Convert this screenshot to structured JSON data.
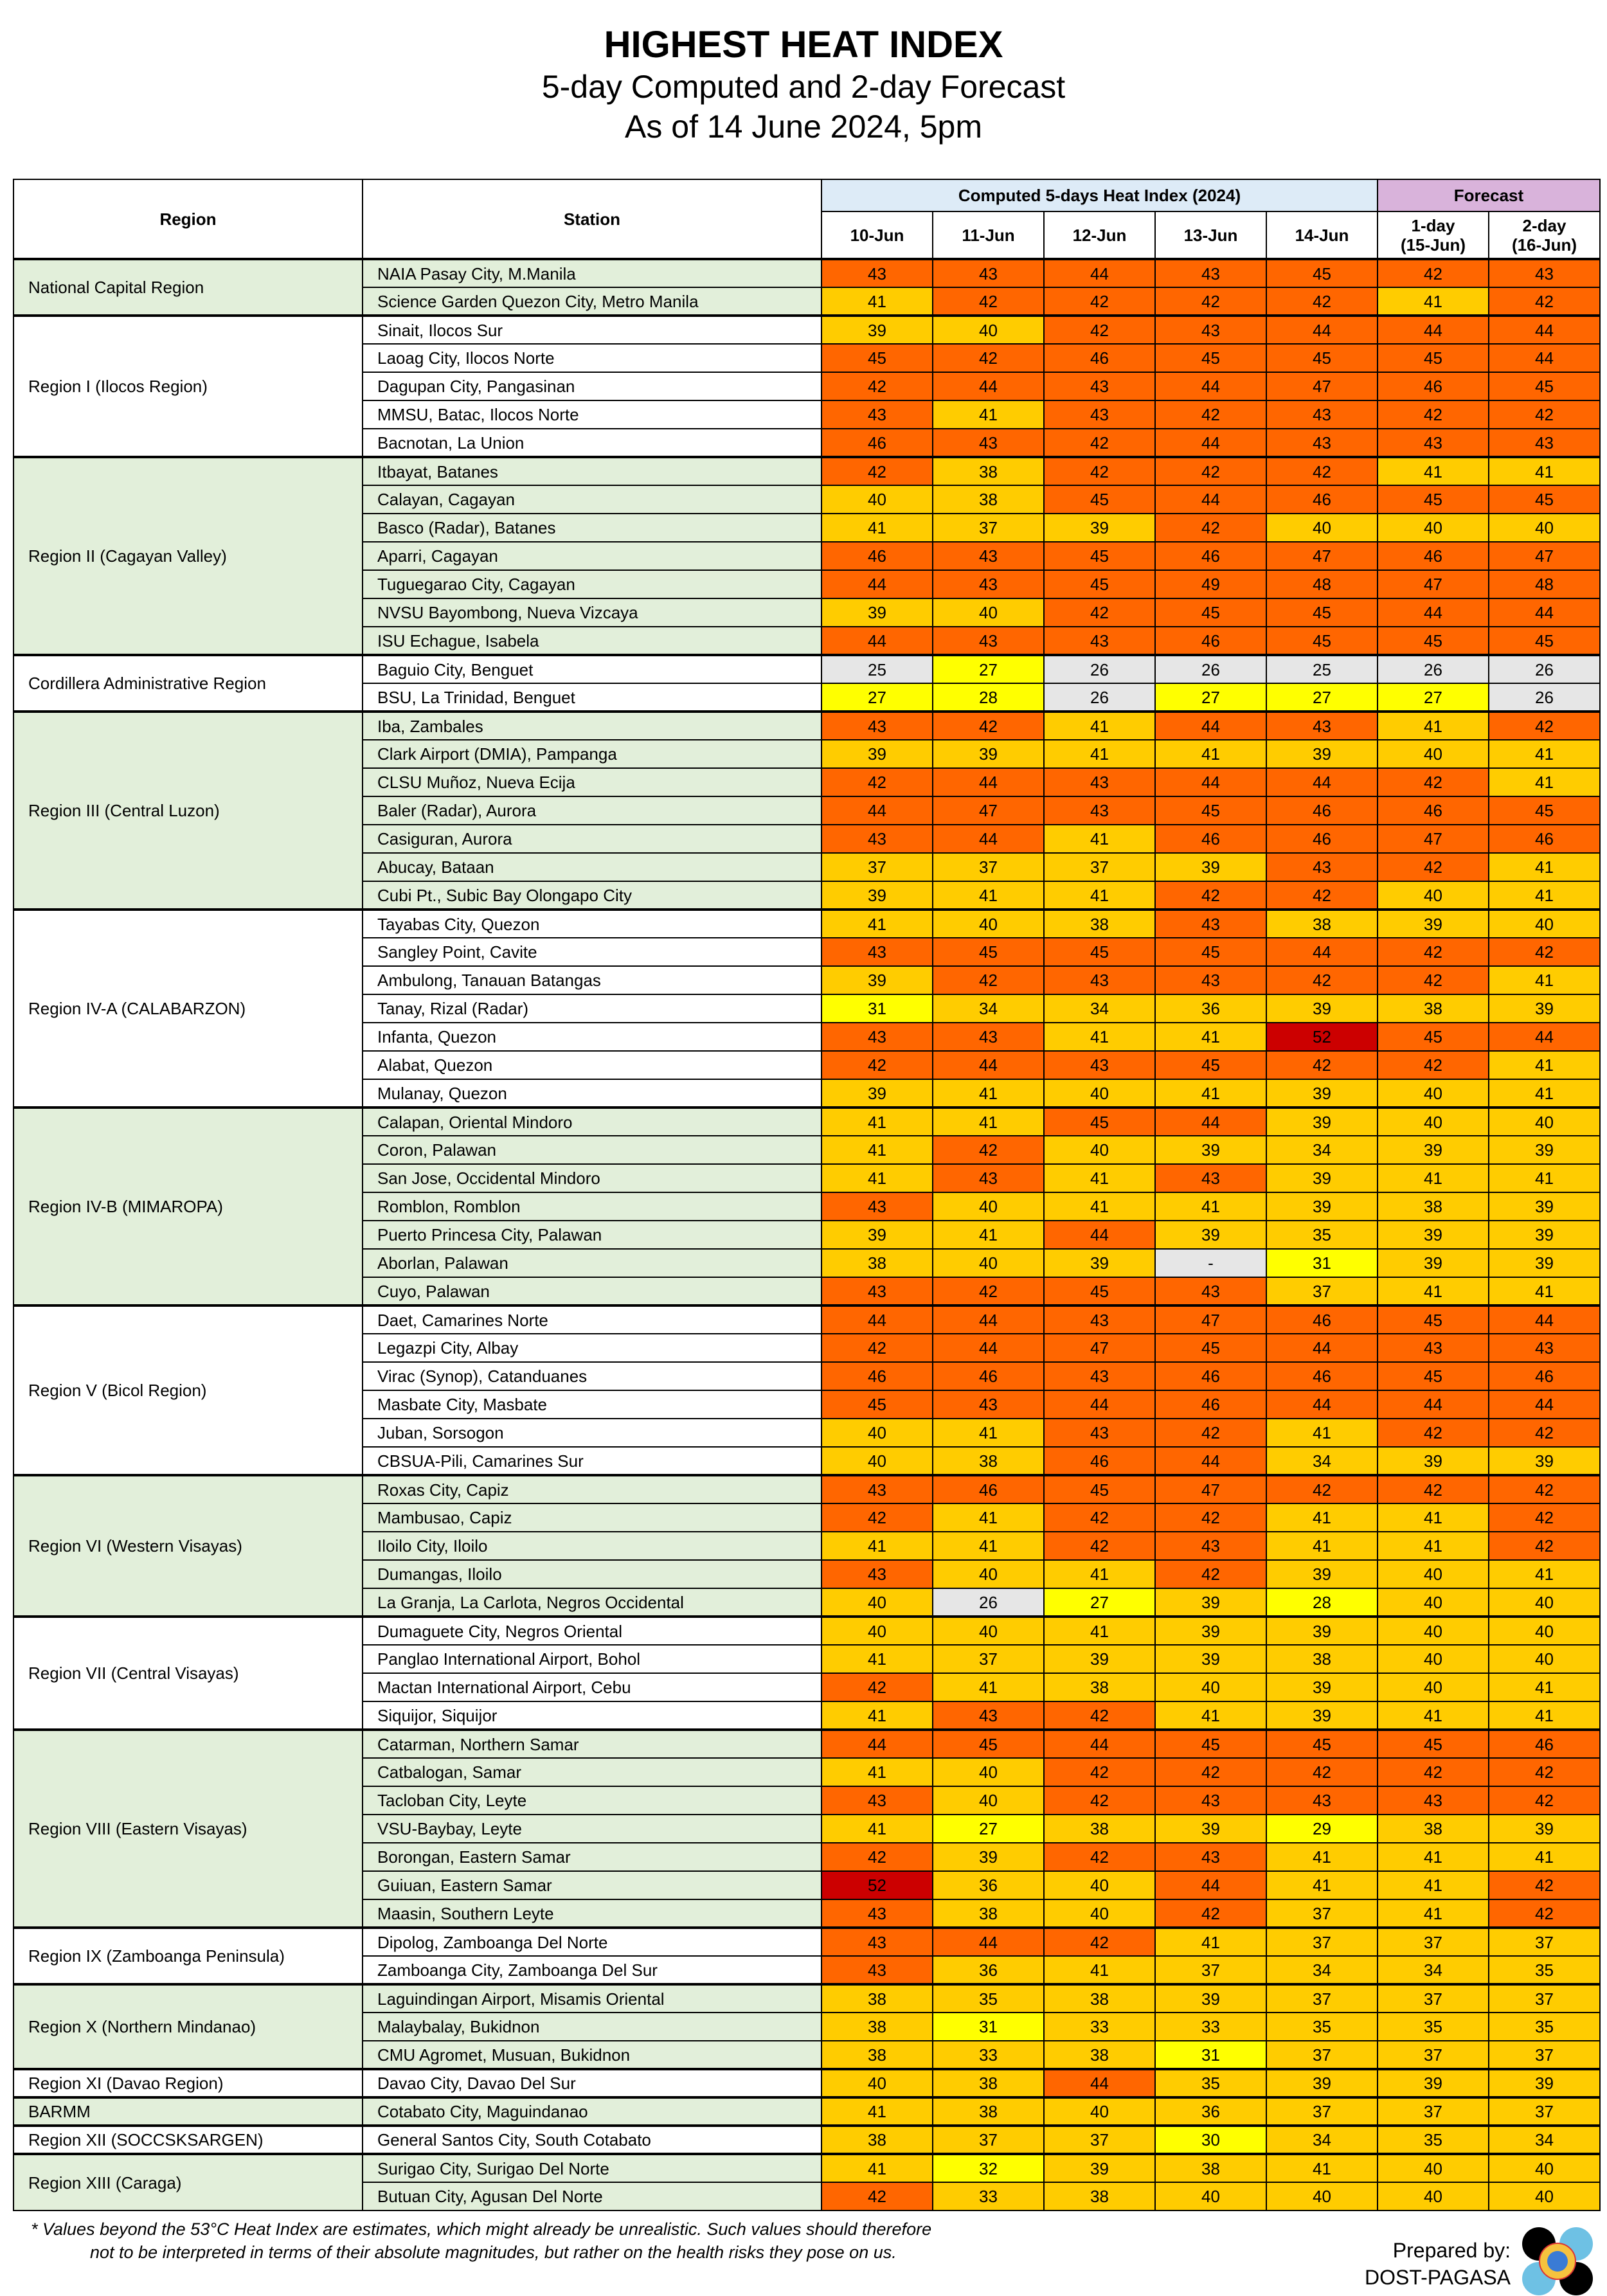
{
  "header": {
    "title": "HIGHEST HEAT INDEX",
    "subtitle": "5-day Computed and 2-day Forecast",
    "as_of": "As of 14 June 2024, 5pm"
  },
  "table": {
    "region_label": "Region",
    "station_label": "Station",
    "computed_label": "Computed 5-days Heat Index (2024)",
    "forecast_label": "Forecast",
    "day_labels": [
      "10-Jun",
      "11-Jun",
      "12-Jun",
      "13-Jun",
      "14-Jun"
    ],
    "forecast_labels": [
      [
        "1-day",
        "(15-Jun)"
      ],
      [
        "2-day",
        "(16-Jun)"
      ]
    ]
  },
  "colors": {
    "region_green": "#E2EFDA",
    "computed_header": "#DDEBF7",
    "forecast_header": "#D9B3DB",
    "danger_52_plus": "#CC0000",
    "danger_42_51": "#FF6600",
    "extreme_caution_33_41": "#FFCC00",
    "caution_27_32": "#FFFF00",
    "below_27_or_missing": "#E6E6E6"
  },
  "regions": [
    {
      "name": "National Capital Region",
      "stations": [
        {
          "name": "NAIA Pasay City, M.Manila",
          "values": [
            43,
            43,
            44,
            43,
            45,
            42,
            43
          ]
        },
        {
          "name": "Science Garden Quezon City, Metro Manila",
          "values": [
            41,
            42,
            42,
            42,
            42,
            41,
            42
          ]
        }
      ]
    },
    {
      "name": "Region I (Ilocos Region)",
      "stations": [
        {
          "name": "Sinait, Ilocos Sur",
          "values": [
            39,
            40,
            42,
            43,
            44,
            44,
            44
          ]
        },
        {
          "name": "Laoag City, Ilocos Norte",
          "values": [
            45,
            42,
            46,
            45,
            45,
            45,
            44
          ]
        },
        {
          "name": "Dagupan City, Pangasinan",
          "values": [
            42,
            44,
            43,
            44,
            47,
            46,
            45
          ]
        },
        {
          "name": "MMSU, Batac, Ilocos Norte",
          "values": [
            43,
            41,
            43,
            42,
            43,
            42,
            42
          ]
        },
        {
          "name": "Bacnotan, La Union",
          "values": [
            46,
            43,
            42,
            44,
            43,
            43,
            43
          ]
        }
      ]
    },
    {
      "name": "Region II (Cagayan Valley)",
      "stations": [
        {
          "name": "Itbayat, Batanes",
          "values": [
            42,
            38,
            42,
            42,
            42,
            41,
            41
          ]
        },
        {
          "name": "Calayan, Cagayan",
          "values": [
            40,
            38,
            45,
            44,
            46,
            45,
            45
          ]
        },
        {
          "name": "Basco (Radar), Batanes",
          "values": [
            41,
            37,
            39,
            42,
            40,
            40,
            40
          ]
        },
        {
          "name": "Aparri, Cagayan",
          "values": [
            46,
            43,
            45,
            46,
            47,
            46,
            47
          ]
        },
        {
          "name": "Tuguegarao City, Cagayan",
          "values": [
            44,
            43,
            45,
            49,
            48,
            47,
            48
          ]
        },
        {
          "name": "NVSU Bayombong, Nueva Vizcaya",
          "values": [
            39,
            40,
            42,
            45,
            45,
            44,
            44
          ]
        },
        {
          "name": "ISU Echague, Isabela",
          "values": [
            44,
            43,
            43,
            46,
            45,
            45,
            45
          ]
        }
      ]
    },
    {
      "name": "Cordillera Administrative Region",
      "stations": [
        {
          "name": "Baguio City, Benguet",
          "values": [
            25,
            27,
            26,
            26,
            25,
            26,
            26
          ]
        },
        {
          "name": "BSU, La Trinidad, Benguet",
          "values": [
            27,
            28,
            26,
            27,
            27,
            27,
            26
          ]
        }
      ]
    },
    {
      "name": "Region III (Central Luzon)",
      "stations": [
        {
          "name": "Iba, Zambales",
          "values": [
            43,
            42,
            41,
            44,
            43,
            41,
            42
          ]
        },
        {
          "name": "Clark Airport (DMIA), Pampanga",
          "values": [
            39,
            39,
            41,
            41,
            39,
            40,
            41
          ]
        },
        {
          "name": "CLSU Muñoz, Nueva Ecija",
          "values": [
            42,
            44,
            43,
            44,
            44,
            42,
            41
          ]
        },
        {
          "name": "Baler (Radar), Aurora",
          "values": [
            44,
            47,
            43,
            45,
            46,
            46,
            45
          ]
        },
        {
          "name": "Casiguran, Aurora",
          "values": [
            43,
            44,
            41,
            46,
            46,
            47,
            46
          ]
        },
        {
          "name": "Abucay, Bataan",
          "values": [
            37,
            37,
            37,
            39,
            43,
            42,
            41
          ]
        },
        {
          "name": "Cubi Pt., Subic Bay Olongapo City",
          "values": [
            39,
            41,
            41,
            42,
            42,
            40,
            41
          ]
        }
      ]
    },
    {
      "name": "Region IV-A (CALABARZON)",
      "stations": [
        {
          "name": "Tayabas City, Quezon",
          "values": [
            41,
            40,
            38,
            43,
            38,
            39,
            40
          ]
        },
        {
          "name": "Sangley Point, Cavite",
          "values": [
            43,
            45,
            45,
            45,
            44,
            42,
            42
          ]
        },
        {
          "name": "Ambulong, Tanauan Batangas",
          "values": [
            39,
            42,
            43,
            43,
            42,
            42,
            41
          ]
        },
        {
          "name": "Tanay, Rizal (Radar)",
          "values": [
            31,
            34,
            34,
            36,
            39,
            38,
            39
          ]
        },
        {
          "name": "Infanta, Quezon",
          "values": [
            43,
            43,
            41,
            41,
            52,
            45,
            44
          ]
        },
        {
          "name": "Alabat, Quezon",
          "values": [
            42,
            44,
            43,
            45,
            42,
            42,
            41
          ]
        },
        {
          "name": "Mulanay, Quezon",
          "values": [
            39,
            41,
            40,
            41,
            39,
            40,
            41
          ]
        }
      ]
    },
    {
      "name": "Region IV-B (MIMAROPA)",
      "stations": [
        {
          "name": "Calapan, Oriental Mindoro",
          "values": [
            41,
            41,
            45,
            44,
            39,
            40,
            40
          ]
        },
        {
          "name": "Coron, Palawan",
          "values": [
            41,
            42,
            40,
            39,
            34,
            39,
            39
          ]
        },
        {
          "name": "San Jose, Occidental Mindoro",
          "values": [
            41,
            43,
            41,
            43,
            39,
            41,
            41
          ]
        },
        {
          "name": "Romblon, Romblon",
          "values": [
            43,
            40,
            41,
            41,
            39,
            38,
            39
          ]
        },
        {
          "name": "Puerto Princesa City, Palawan",
          "values": [
            39,
            41,
            44,
            39,
            35,
            39,
            39
          ]
        },
        {
          "name": "Aborlan, Palawan",
          "values": [
            38,
            40,
            39,
            "-",
            31,
            39,
            39
          ]
        },
        {
          "name": "Cuyo, Palawan",
          "values": [
            43,
            42,
            45,
            43,
            37,
            41,
            41
          ]
        }
      ]
    },
    {
      "name": "Region V (Bicol Region)",
      "stations": [
        {
          "name": "Daet, Camarines Norte",
          "values": [
            44,
            44,
            43,
            47,
            46,
            45,
            44
          ]
        },
        {
          "name": "Legazpi City, Albay",
          "values": [
            42,
            44,
            47,
            45,
            44,
            43,
            43
          ]
        },
        {
          "name": "Virac (Synop), Catanduanes",
          "values": [
            46,
            46,
            43,
            46,
            46,
            45,
            46
          ]
        },
        {
          "name": "Masbate City, Masbate",
          "values": [
            45,
            43,
            44,
            46,
            44,
            44,
            44
          ]
        },
        {
          "name": "Juban, Sorsogon",
          "values": [
            40,
            41,
            43,
            42,
            41,
            42,
            42
          ]
        },
        {
          "name": "CBSUA-Pili, Camarines Sur",
          "values": [
            40,
            38,
            46,
            44,
            34,
            39,
            39
          ]
        }
      ]
    },
    {
      "name": "Region VI (Western Visayas)",
      "stations": [
        {
          "name": "Roxas City, Capiz",
          "values": [
            43,
            46,
            45,
            47,
            42,
            42,
            42
          ]
        },
        {
          "name": "Mambusao, Capiz",
          "values": [
            42,
            41,
            42,
            42,
            41,
            41,
            42
          ]
        },
        {
          "name": "Iloilo City, Iloilo",
          "values": [
            41,
            41,
            42,
            43,
            41,
            41,
            42
          ]
        },
        {
          "name": "Dumangas, Iloilo",
          "values": [
            43,
            40,
            41,
            42,
            39,
            40,
            41
          ]
        },
        {
          "name": "La Granja, La Carlota, Negros Occidental",
          "values": [
            40,
            26,
            27,
            39,
            28,
            40,
            40
          ]
        }
      ]
    },
    {
      "name": "Region VII (Central Visayas)",
      "stations": [
        {
          "name": "Dumaguete City, Negros Oriental",
          "values": [
            40,
            40,
            41,
            39,
            39,
            40,
            40
          ]
        },
        {
          "name": "Panglao International Airport, Bohol",
          "values": [
            41,
            37,
            39,
            39,
            38,
            40,
            40
          ]
        },
        {
          "name": "Mactan International Airport, Cebu",
          "values": [
            42,
            41,
            38,
            40,
            39,
            40,
            41
          ]
        },
        {
          "name": "Siquijor, Siquijor",
          "values": [
            41,
            43,
            42,
            41,
            39,
            41,
            41
          ]
        }
      ]
    },
    {
      "name": "Region VIII (Eastern Visayas)",
      "stations": [
        {
          "name": "Catarman, Northern Samar",
          "values": [
            44,
            45,
            44,
            45,
            45,
            45,
            46
          ]
        },
        {
          "name": "Catbalogan, Samar",
          "values": [
            41,
            40,
            42,
            42,
            42,
            42,
            42
          ]
        },
        {
          "name": "Tacloban City, Leyte",
          "values": [
            43,
            40,
            42,
            43,
            43,
            43,
            42
          ]
        },
        {
          "name": "VSU-Baybay, Leyte",
          "values": [
            41,
            27,
            38,
            39,
            29,
            38,
            39
          ]
        },
        {
          "name": "Borongan, Eastern Samar",
          "values": [
            42,
            39,
            42,
            43,
            41,
            41,
            41
          ]
        },
        {
          "name": "Guiuan, Eastern Samar",
          "values": [
            52,
            36,
            40,
            44,
            41,
            41,
            42
          ]
        },
        {
          "name": "Maasin, Southern Leyte",
          "values": [
            43,
            38,
            40,
            42,
            37,
            41,
            42
          ]
        }
      ]
    },
    {
      "name": "Region IX (Zamboanga Peninsula)",
      "stations": [
        {
          "name": "Dipolog, Zamboanga Del Norte",
          "values": [
            43,
            44,
            42,
            41,
            37,
            37,
            37
          ]
        },
        {
          "name": "Zamboanga City, Zamboanga Del Sur",
          "values": [
            43,
            36,
            41,
            37,
            34,
            34,
            35
          ]
        }
      ]
    },
    {
      "name": "Region X (Northern Mindanao)",
      "stations": [
        {
          "name": "Laguindingan Airport, Misamis Oriental",
          "values": [
            38,
            35,
            38,
            39,
            37,
            37,
            37
          ]
        },
        {
          "name": "Malaybalay, Bukidnon",
          "values": [
            38,
            31,
            33,
            33,
            35,
            35,
            35
          ]
        },
        {
          "name": "CMU Agromet, Musuan, Bukidnon",
          "values": [
            38,
            33,
            38,
            31,
            37,
            37,
            37
          ]
        }
      ]
    },
    {
      "name": "Region XI (Davao Region)",
      "stations": [
        {
          "name": "Davao City, Davao Del Sur",
          "values": [
            40,
            38,
            44,
            35,
            39,
            39,
            39
          ]
        }
      ]
    },
    {
      "name": "BARMM",
      "stations": [
        {
          "name": "Cotabato City, Maguindanao",
          "values": [
            41,
            38,
            40,
            36,
            37,
            37,
            37
          ]
        }
      ]
    },
    {
      "name": "Region XII (SOCCSKSARGEN)",
      "stations": [
        {
          "name": "General Santos City, South Cotabato",
          "values": [
            38,
            37,
            37,
            30,
            34,
            35,
            34
          ]
        }
      ]
    },
    {
      "name": "Region XIII (Caraga)",
      "stations": [
        {
          "name": "Surigao City, Surigao Del Norte",
          "values": [
            41,
            32,
            39,
            38,
            41,
            40,
            40
          ]
        },
        {
          "name": "Butuan City, Agusan Del Norte",
          "values": [
            42,
            33,
            38,
            40,
            40,
            40,
            40
          ]
        }
      ]
    }
  ],
  "footer": {
    "note_line1": "* Values beyond the 53°C Heat Index are estimates, which might already be unrealistic. Such values should therefore",
    "note_line2": "not to be interpreted in terms of their absolute magnitudes, but rather on the health risks they pose on us.",
    "prepared_by": "Prepared by:",
    "org": "DOST-PAGASA",
    "logo_text": "PAGASA"
  }
}
